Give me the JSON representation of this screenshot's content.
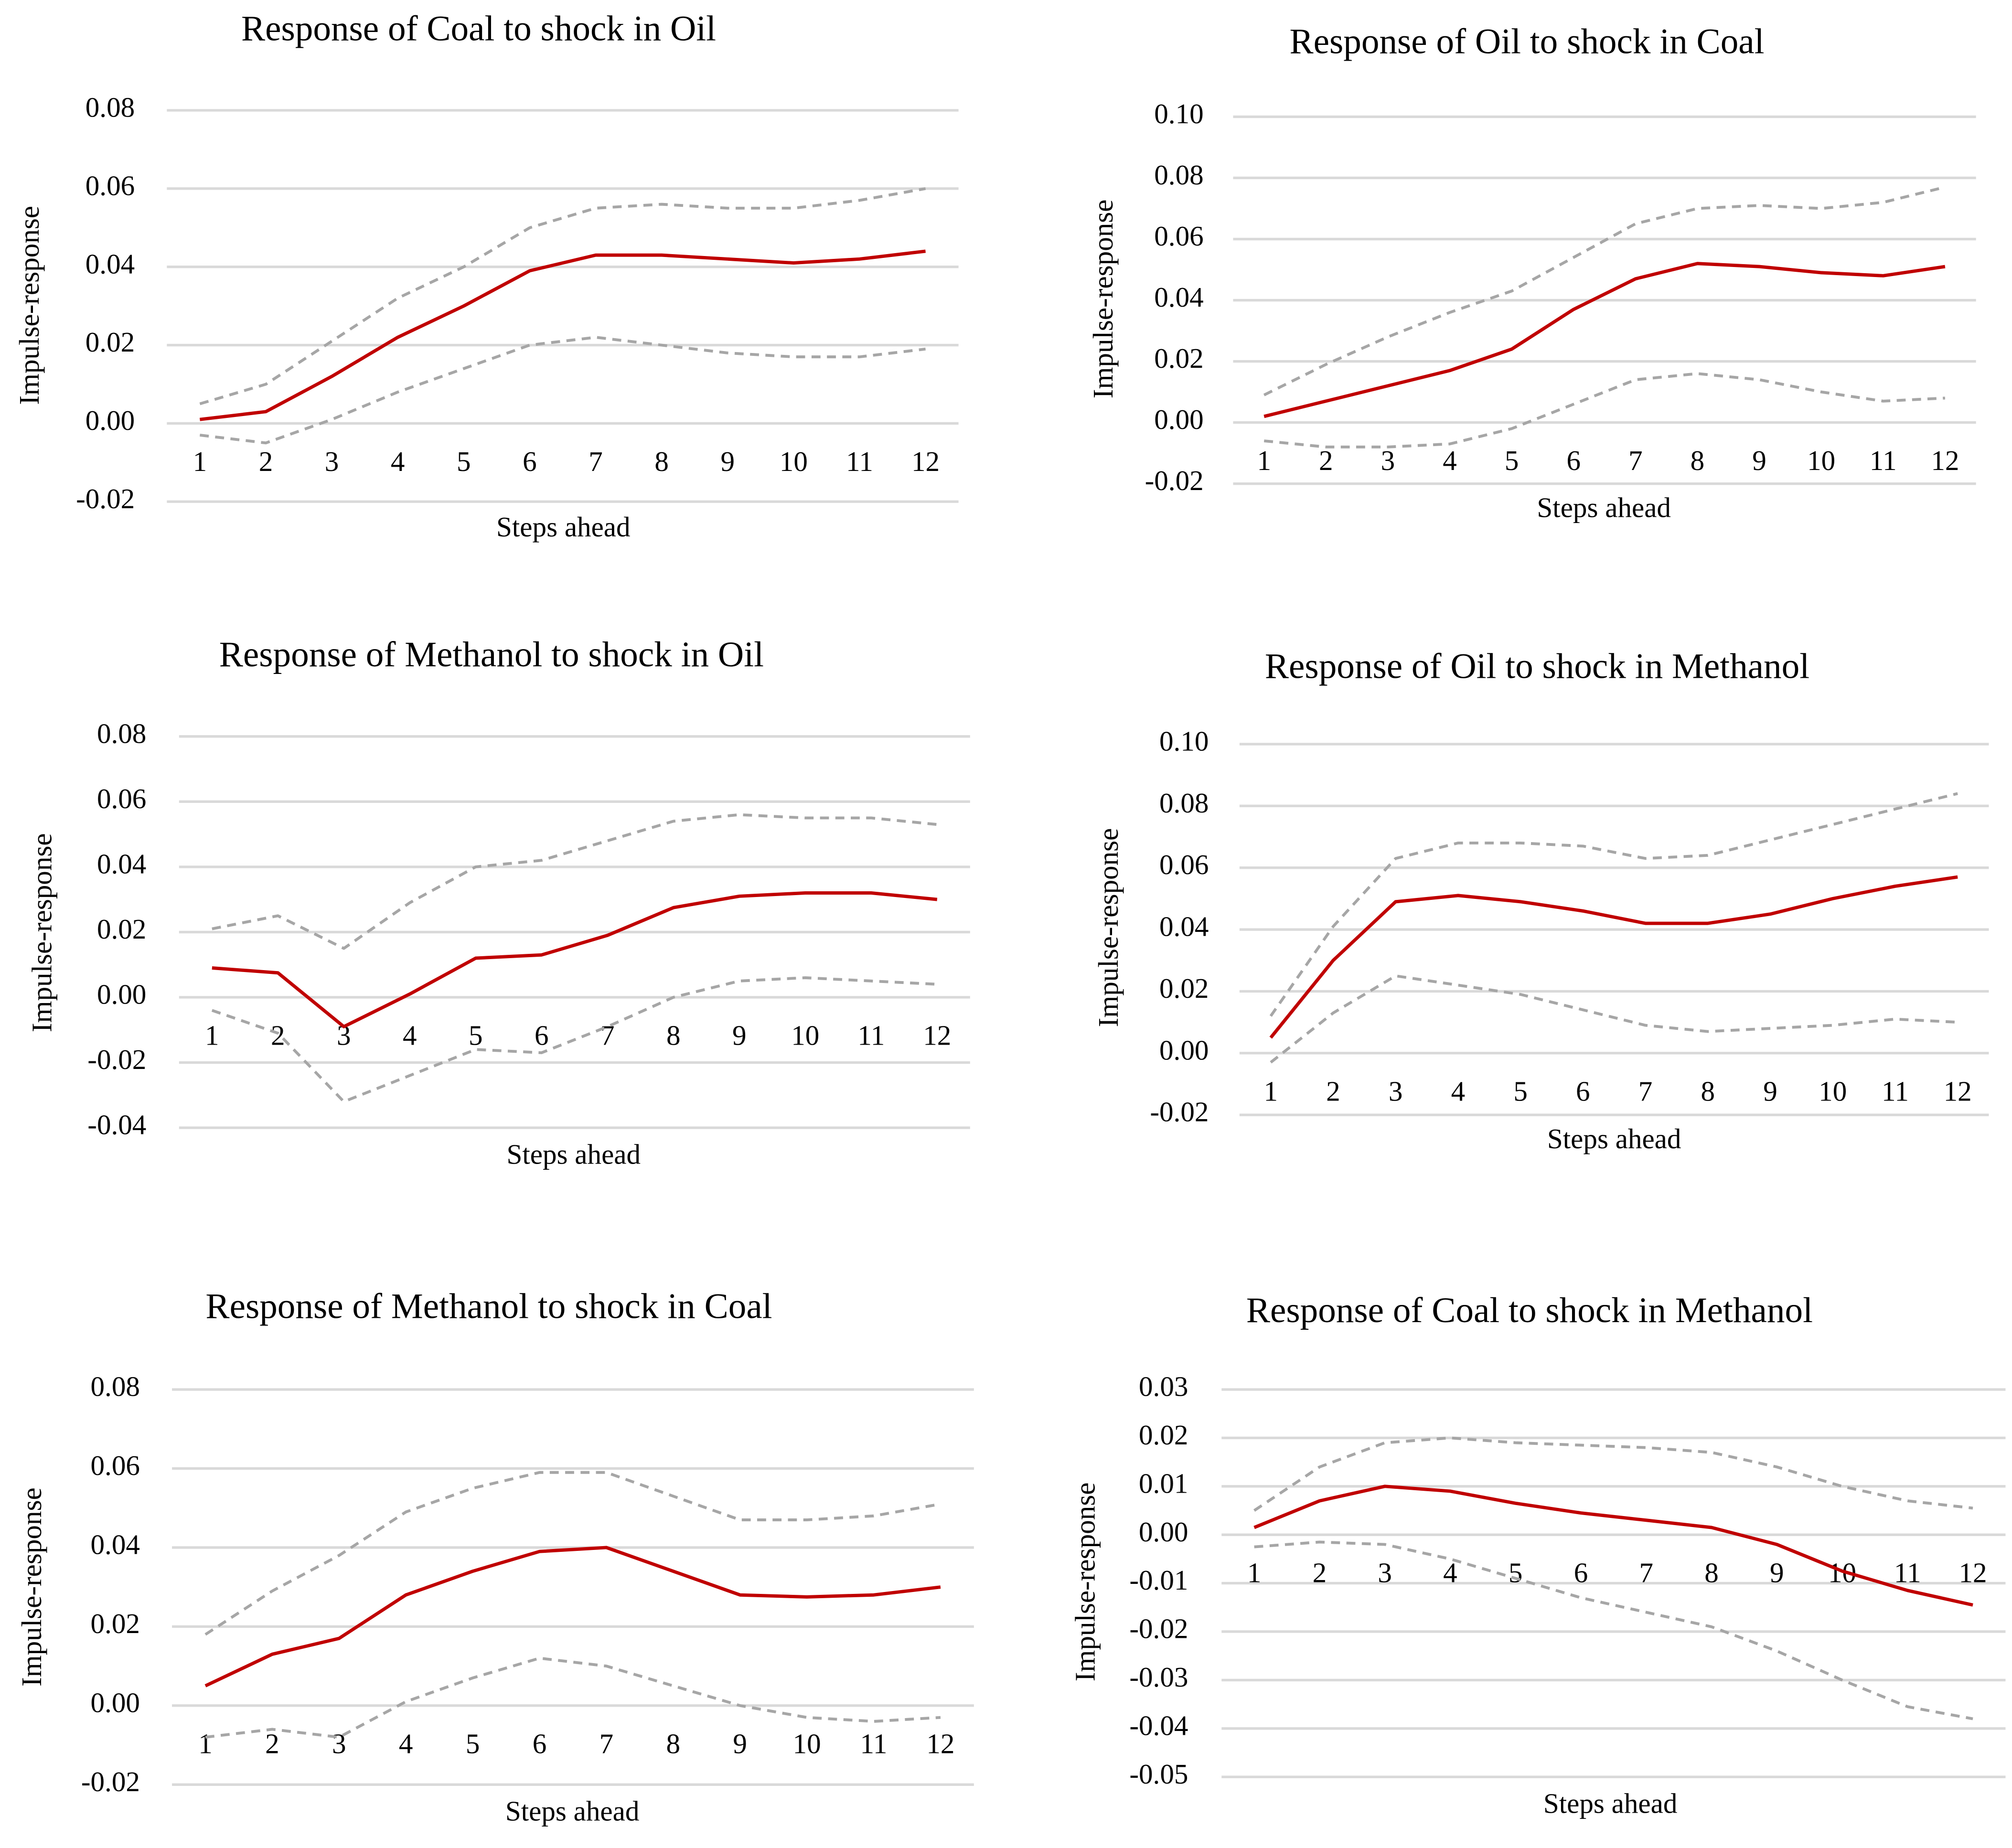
{
  "chart_data": [
    {
      "type": "line",
      "title": "Response of Coal to shock in Oil",
      "y_label": "Impulse-response",
      "x_label": "Steps ahead",
      "categories": [
        1,
        2,
        3,
        4,
        5,
        6,
        7,
        8,
        9,
        10,
        11,
        12
      ],
      "ylim": [
        -0.02,
        0.08
      ],
      "yticks": [
        -0.02,
        {
          "value": 0,
          "label": "0.00"
        },
        0.02,
        0.04,
        0.06,
        0.08
      ],
      "grid": true,
      "series": [
        {
          "color": "#a6a6a6",
          "dashed": true,
          "values": [
            0.005,
            0.01,
            0.021,
            0.032,
            0.04,
            0.05,
            0.055,
            0.056,
            0.055,
            0.055,
            0.057,
            0.06
          ]
        },
        {
          "color": "#c00000",
          "dashed": false,
          "values": [
            0.001,
            0.003,
            0.012,
            0.022,
            0.03,
            0.039,
            0.043,
            0.043,
            0.042,
            0.041,
            0.042,
            0.044
          ]
        },
        {
          "color": "#a6a6a6",
          "dashed": true,
          "values": [
            -0.003,
            -0.005,
            0.001,
            0.008,
            0.014,
            0.02,
            0.022,
            0.02,
            0.018,
            0.017,
            0.017,
            0.019
          ]
        }
      ]
    },
    {
      "type": "line",
      "title": "Response of Oil to shock in Coal",
      "y_label": "Impulse-response",
      "x_label": "Steps ahead",
      "categories": [
        1,
        2,
        3,
        4,
        5,
        6,
        7,
        8,
        9,
        10,
        11,
        12
      ],
      "ylim": [
        -0.02,
        0.1
      ],
      "yticks": [
        -0.02,
        {
          "value": 0,
          "label": "0.00"
        },
        0.02,
        0.04,
        0.06,
        0.08,
        {
          "value": 0.1,
          "label": "0.10"
        }
      ],
      "grid": true,
      "series": [
        {
          "color": "#a6a6a6",
          "dashed": true,
          "values": [
            0.009,
            0.019,
            0.028,
            0.036,
            0.043,
            0.054,
            0.065,
            0.07,
            0.071,
            0.07,
            0.072,
            0.077
          ]
        },
        {
          "color": "#c00000",
          "dashed": false,
          "values": [
            0.002,
            0.007,
            0.012,
            0.017,
            0.024,
            0.037,
            0.047,
            0.052,
            0.051,
            0.049,
            0.048,
            0.051
          ]
        },
        {
          "color": "#a6a6a6",
          "dashed": true,
          "values": [
            -0.006,
            -0.008,
            -0.008,
            -0.007,
            -0.002,
            0.006,
            0.014,
            0.016,
            0.014,
            0.01,
            0.007,
            0.008
          ]
        }
      ]
    },
    {
      "type": "line",
      "title": "Response of Methanol to shock in Oil",
      "y_label": "Impulse-response",
      "x_label": "Steps ahead",
      "categories": [
        1,
        2,
        3,
        4,
        5,
        6,
        7,
        8,
        9,
        10,
        11,
        12
      ],
      "ylim": [
        -0.04,
        0.08
      ],
      "yticks": [
        -0.04,
        -0.02,
        {
          "value": 0,
          "label": "0.00"
        },
        0.02,
        0.04,
        0.06,
        0.08
      ],
      "grid": true,
      "series": [
        {
          "color": "#a6a6a6",
          "dashed": true,
          "values": [
            0.021,
            0.025,
            0.015,
            0.029,
            0.04,
            0.042,
            0.048,
            0.054,
            0.056,
            0.055,
            0.055,
            0.053
          ]
        },
        {
          "color": "#c00000",
          "dashed": false,
          "values": [
            0.009,
            0.0075,
            -0.009,
            0.001,
            0.012,
            0.013,
            0.019,
            0.0275,
            0.031,
            0.032,
            0.032,
            0.03
          ]
        },
        {
          "color": "#a6a6a6",
          "dashed": true,
          "values": [
            -0.004,
            -0.011,
            -0.032,
            -0.024,
            -0.016,
            -0.017,
            -0.009,
            0.0,
            0.005,
            0.006,
            0.005,
            0.004
          ]
        }
      ]
    },
    {
      "type": "line",
      "title": "Response of Oil to shock in Methanol",
      "y_label": "Impulse-response",
      "x_label": "Steps ahead",
      "categories": [
        1,
        2,
        3,
        4,
        5,
        6,
        7,
        8,
        9,
        10,
        11,
        12
      ],
      "ylim": [
        -0.02,
        0.1
      ],
      "yticks": [
        -0.02,
        {
          "value": 0,
          "label": "0.00"
        },
        0.02,
        0.04,
        0.06,
        0.08,
        {
          "value": 0.1,
          "label": "0.10"
        }
      ],
      "grid": true,
      "series": [
        {
          "color": "#a6a6a6",
          "dashed": true,
          "values": [
            0.012,
            0.041,
            0.063,
            0.068,
            0.068,
            0.067,
            0.063,
            0.064,
            0.069,
            0.074,
            0.079,
            0.084
          ]
        },
        {
          "color": "#c00000",
          "dashed": false,
          "values": [
            0.005,
            0.03,
            0.049,
            0.051,
            0.049,
            0.046,
            0.042,
            0.042,
            0.045,
            0.05,
            0.054,
            0.057
          ]
        },
        {
          "color": "#a6a6a6",
          "dashed": true,
          "values": [
            -0.003,
            0.013,
            0.025,
            0.022,
            0.019,
            0.014,
            0.009,
            0.007,
            0.008,
            0.009,
            0.011,
            0.01
          ]
        }
      ]
    },
    {
      "type": "line",
      "title": "Response of Methanol to shock in Coal",
      "y_label": "Impulse-response",
      "x_label": "Steps ahead",
      "categories": [
        1,
        2,
        3,
        4,
        5,
        6,
        7,
        8,
        9,
        10,
        11,
        12
      ],
      "ylim": [
        -0.02,
        0.08
      ],
      "yticks": [
        -0.02,
        {
          "value": 0,
          "label": "0.00"
        },
        0.02,
        0.04,
        0.06,
        0.08
      ],
      "grid": true,
      "series": [
        {
          "color": "#a6a6a6",
          "dashed": true,
          "values": [
            0.018,
            0.029,
            0.038,
            0.049,
            0.055,
            0.059,
            0.059,
            0.053,
            0.047,
            0.047,
            0.048,
            0.051
          ]
        },
        {
          "color": "#c00000",
          "dashed": false,
          "values": [
            0.005,
            0.013,
            0.017,
            0.028,
            0.034,
            0.039,
            0.04,
            0.034,
            0.028,
            0.0275,
            0.028,
            0.03
          ]
        },
        {
          "color": "#a6a6a6",
          "dashed": true,
          "values": [
            -0.008,
            -0.006,
            -0.008,
            0.001,
            0.007,
            0.012,
            0.01,
            0.005,
            0.0,
            -0.003,
            -0.004,
            -0.003
          ]
        }
      ]
    },
    {
      "type": "line",
      "title": "Response of Coal to shock in Methanol",
      "y_label": "Impulse-response",
      "x_label": "Steps ahead",
      "categories": [
        1,
        2,
        3,
        4,
        5,
        6,
        7,
        8,
        9,
        10,
        11,
        12
      ],
      "ylim": [
        -0.05,
        0.03
      ],
      "yticks": [
        -0.05,
        -0.04,
        -0.03,
        -0.02,
        -0.01,
        {
          "value": 0,
          "label": "0.00"
        },
        0.01,
        0.02,
        0.03
      ],
      "grid": true,
      "series": [
        {
          "color": "#a6a6a6",
          "dashed": true,
          "values": [
            0.005,
            0.014,
            0.019,
            0.02,
            0.019,
            0.0185,
            0.018,
            0.017,
            0.014,
            0.01,
            0.007,
            0.0055
          ]
        },
        {
          "color": "#c00000",
          "dashed": false,
          "values": [
            0.0015,
            0.007,
            0.01,
            0.009,
            0.0065,
            0.0045,
            0.003,
            0.0015,
            -0.002,
            -0.0075,
            -0.0115,
            -0.0145
          ]
        },
        {
          "color": "#a6a6a6",
          "dashed": true,
          "values": [
            -0.0025,
            -0.0015,
            -0.002,
            -0.005,
            -0.009,
            -0.013,
            -0.016,
            -0.019,
            -0.024,
            -0.03,
            -0.0355,
            -0.038
          ]
        }
      ]
    }
  ]
}
